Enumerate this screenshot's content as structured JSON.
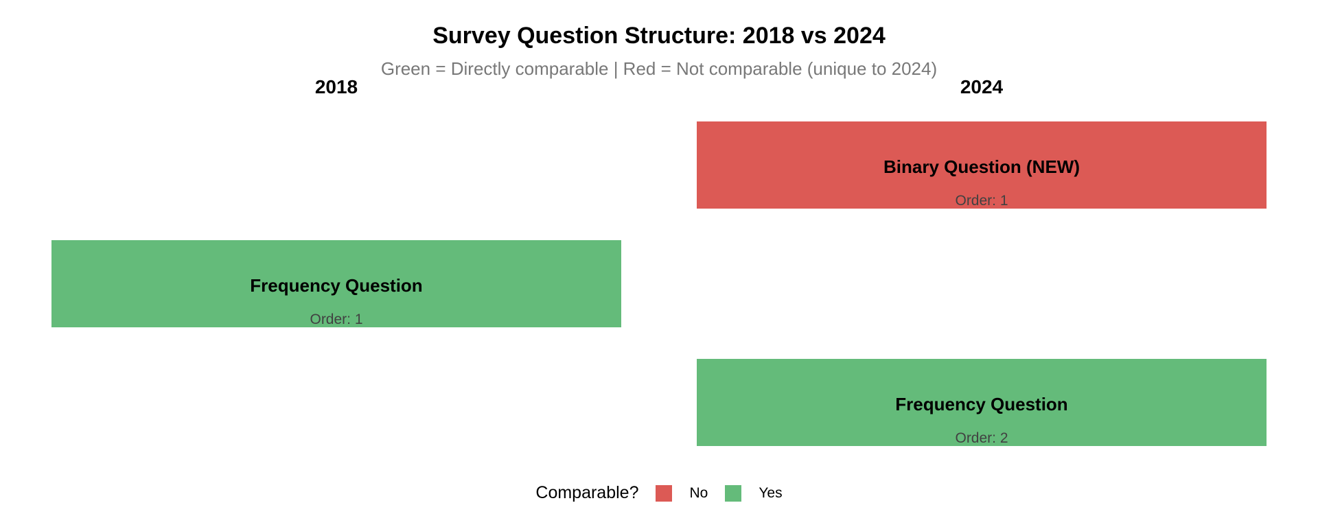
{
  "title": "Survey Question Structure: 2018 vs 2024",
  "subtitle": "Green = Directly comparable | Red = Not comparable (unique to 2024)",
  "facets": [
    {
      "label": "2018"
    },
    {
      "label": "2024"
    }
  ],
  "boxes": [
    {
      "year": "2024",
      "label": "Binary Question (NEW)",
      "order_label": "Order: 1",
      "comparable": "No",
      "color": "#DC5A55"
    },
    {
      "year": "2018",
      "label": "Frequency Question",
      "order_label": "Order: 1",
      "comparable": "Yes",
      "color": "#64BB7A"
    },
    {
      "year": "2024",
      "label": "Frequency Question",
      "order_label": "Order: 2",
      "comparable": "Yes",
      "color": "#64BB7A"
    }
  ],
  "legend": {
    "title": "Comparable?",
    "position": "bottom",
    "entries": [
      {
        "label": "No",
        "color": "#DC5A55"
      },
      {
        "label": "Yes",
        "color": "#64BB7A"
      }
    ]
  },
  "colors": {
    "not_comparable_red": "#DC5A55",
    "comparable_green": "#64BB7A",
    "subtitle_gray": "#787878",
    "order_text_gray": "#414141",
    "text_black": "#000000",
    "background": "#FFFFFF"
  },
  "chart_data": {
    "type": "table",
    "title": "Survey Question Structure: 2018 vs 2024",
    "subtitle": "Green = Directly comparable | Red = Not comparable (unique to 2024)",
    "columns": [
      "2018",
      "2024"
    ],
    "legend": {
      "title": "Comparable?",
      "entries": [
        "No",
        "Yes"
      ],
      "position": "bottom"
    },
    "legend_colors": {
      "No": "#DC5A55",
      "Yes": "#64BB7A"
    },
    "items": [
      {
        "year": "2018",
        "question": "Frequency Question",
        "order": 1,
        "comparable": "Yes"
      },
      {
        "year": "2024",
        "question": "Binary Question (NEW)",
        "order": 1,
        "comparable": "No"
      },
      {
        "year": "2024",
        "question": "Frequency Question",
        "order": 2,
        "comparable": "Yes"
      }
    ],
    "layout_hints": {
      "grid": "2 columns by year, rows by question order",
      "background": "white",
      "axes": "none"
    }
  }
}
